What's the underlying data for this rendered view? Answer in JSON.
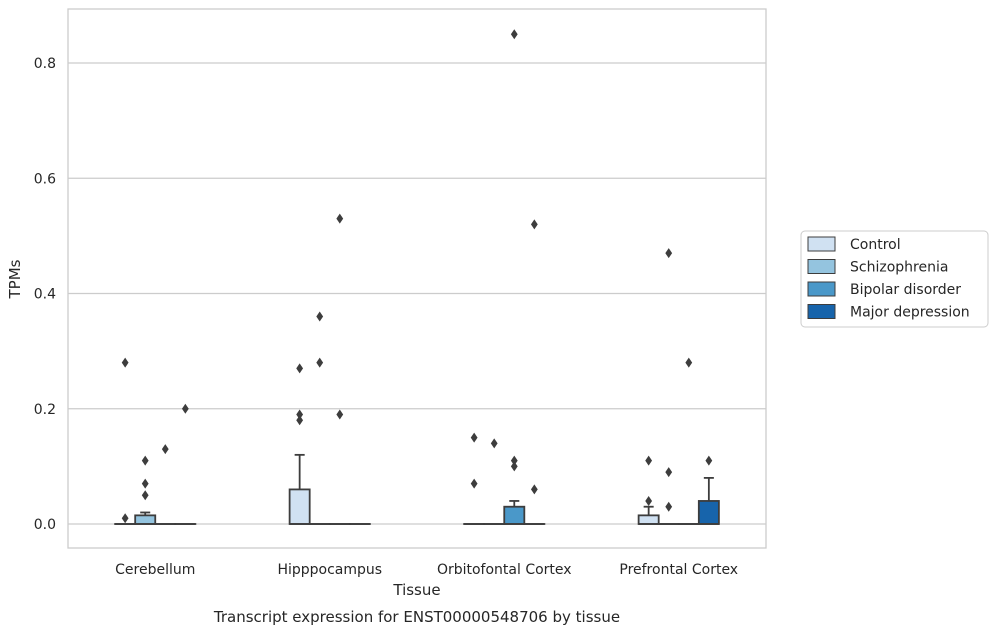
{
  "chart_data": {
    "type": "box",
    "title": "",
    "caption": "Transcript expression for ENST00000548706 by tissue",
    "xlabel": "Tissue",
    "ylabel": "TPMs",
    "ylim": [
      -0.04,
      0.9
    ],
    "yticks": [
      0.0,
      0.2,
      0.4,
      0.6,
      0.8
    ],
    "ytick_labels": [
      "0.0",
      "0.2",
      "0.4",
      "0.6",
      "0.8"
    ],
    "grid": true,
    "legend_position": "right",
    "categories": [
      "Cerebellum",
      "Hipppocampus",
      "Orbitofontal Cortex",
      "Prefrontal Cortex"
    ],
    "series": [
      {
        "name": "Control",
        "color": "#d0e1f2",
        "boxes": [
          {
            "q1": 0,
            "median": 0,
            "q3": 0,
            "whisker_low": 0,
            "whisker_high": 0,
            "outliers": [
              0.01,
              0.28
            ]
          },
          {
            "q1": 0,
            "median": 0,
            "q3": 0.06,
            "whisker_low": 0,
            "whisker_high": 0.12,
            "outliers": [
              0.18,
              0.19,
              0.27
            ]
          },
          {
            "q1": 0,
            "median": 0,
            "q3": 0,
            "whisker_low": 0,
            "whisker_high": 0,
            "outliers": [
              0.07,
              0.15
            ]
          },
          {
            "q1": 0,
            "median": 0,
            "q3": 0.015,
            "whisker_low": 0,
            "whisker_high": 0.03,
            "outliers": [
              0.04,
              0.11
            ]
          }
        ]
      },
      {
        "name": "Schizophrenia",
        "color": "#94c4df",
        "boxes": [
          {
            "q1": 0,
            "median": 0,
            "q3": 0.015,
            "whisker_low": 0,
            "whisker_high": 0.02,
            "outliers": [
              0.05,
              0.07,
              0.11
            ]
          },
          {
            "q1": 0,
            "median": 0,
            "q3": 0,
            "whisker_low": 0,
            "whisker_high": 0,
            "outliers": [
              0.28,
              0.36
            ]
          },
          {
            "q1": 0,
            "median": 0,
            "q3": 0,
            "whisker_low": 0,
            "whisker_high": 0,
            "outliers": [
              0.14
            ]
          },
          {
            "q1": 0,
            "median": 0,
            "q3": 0,
            "whisker_low": 0,
            "whisker_high": 0,
            "outliers": [
              0.03,
              0.09,
              0.47
            ]
          }
        ]
      },
      {
        "name": "Bipolar disorder",
        "color": "#4a98c9",
        "boxes": [
          {
            "q1": 0,
            "median": 0,
            "q3": 0,
            "whisker_low": 0,
            "whisker_high": 0,
            "outliers": [
              0.13
            ]
          },
          {
            "q1": 0,
            "median": 0,
            "q3": 0,
            "whisker_low": 0,
            "whisker_high": 0,
            "outliers": [
              0.19,
              0.53
            ]
          },
          {
            "q1": 0,
            "median": 0,
            "q3": 0.03,
            "whisker_low": 0,
            "whisker_high": 0.04,
            "outliers": [
              0.1,
              0.11,
              0.85
            ]
          },
          {
            "q1": 0,
            "median": 0,
            "q3": 0,
            "whisker_low": 0,
            "whisker_high": 0,
            "outliers": [
              0.28
            ]
          }
        ]
      },
      {
        "name": "Major depression",
        "color": "#1764ab",
        "boxes": [
          {
            "q1": 0,
            "median": 0,
            "q3": 0,
            "whisker_low": 0,
            "whisker_high": 0,
            "outliers": [
              0.2
            ]
          },
          {
            "q1": 0,
            "median": 0,
            "q3": 0,
            "whisker_low": 0,
            "whisker_high": 0,
            "outliers": []
          },
          {
            "q1": 0,
            "median": 0,
            "q3": 0,
            "whisker_low": 0,
            "whisker_high": 0,
            "outliers": [
              0.06,
              0.52
            ]
          },
          {
            "q1": 0,
            "median": 0,
            "q3": 0.04,
            "whisker_low": 0,
            "whisker_high": 0.08,
            "outliers": [
              0.11
            ]
          }
        ]
      }
    ]
  }
}
